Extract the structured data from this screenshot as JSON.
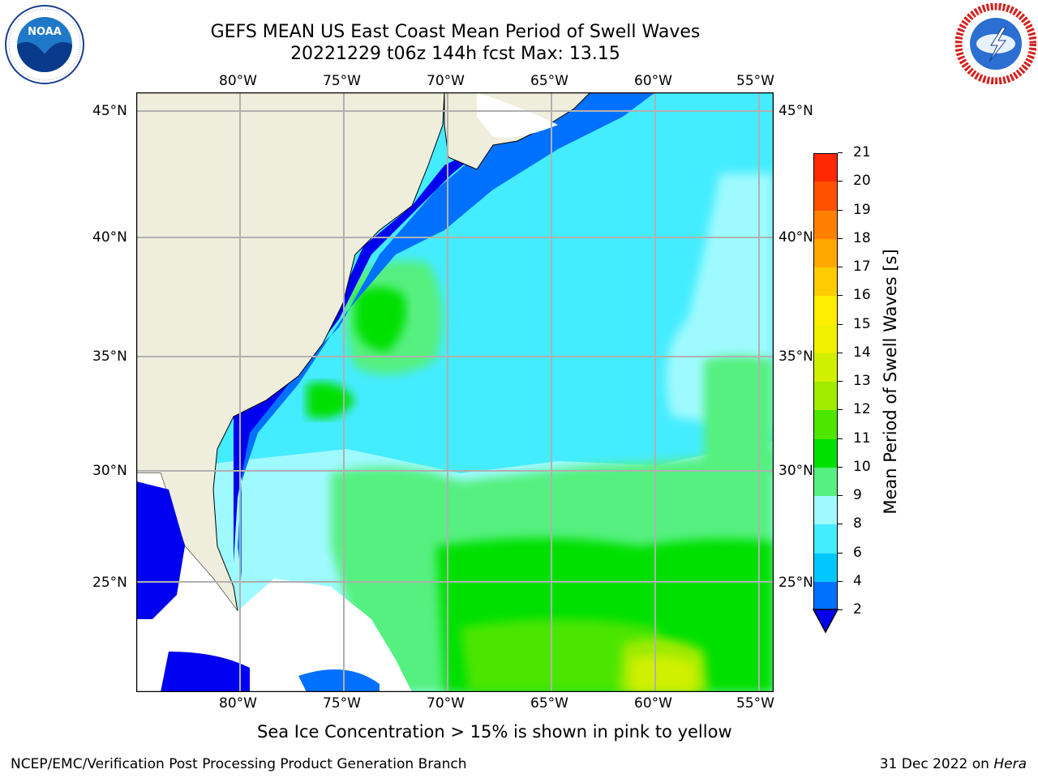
{
  "header": {
    "title_line1": "GEFS MEAN US East Coast Mean Period of Swell Waves",
    "title_line2": "20221229 t06z 144h fcst   Max: 13.15"
  },
  "logos": {
    "left": "NOAA",
    "left_ring_text": "NATIONAL OCEANIC AND ATMOSPHERIC ADMINISTRATION · U.S. DEPARTMENT OF COMMERCE",
    "right_ring_text": "NATIONAL WEATHER SERVICE"
  },
  "map": {
    "lon_labels": [
      "80°W",
      "75°W",
      "70°W",
      "65°W",
      "60°W",
      "55°W"
    ],
    "lat_labels": [
      "45°N",
      "40°N",
      "35°N",
      "30°N",
      "25°N"
    ],
    "colors": {
      "land": "#efeedd",
      "mask": "#ffffff",
      "grid": "#b0b0b0"
    }
  },
  "colorbar": {
    "label": "Mean Period of Swell Waves [s]",
    "ticks": [
      "2",
      "4",
      "6",
      "8",
      "9",
      "10",
      "11",
      "12",
      "13",
      "14",
      "15",
      "16",
      "17",
      "18",
      "19",
      "20",
      "21"
    ],
    "colors": [
      "#0070ff",
      "#00c8ff",
      "#44ecff",
      "#9ffaff",
      "#55f080",
      "#00e000",
      "#4ce600",
      "#a0eb00",
      "#d0f000",
      "#f0f000",
      "#ffee00",
      "#ffcc00",
      "#ffa800",
      "#ff8000",
      "#ff5000",
      "#ff2800",
      "#ff0000"
    ],
    "under_color": "#0000f0"
  },
  "footer": {
    "note": "Sea Ice Concentration > 15% is shown in pink to yellow",
    "left": "NCEP/EMC/Verification Post Processing Product Generation Branch",
    "date": "31 Dec 2022",
    "on": "on",
    "machine": "Hera"
  }
}
